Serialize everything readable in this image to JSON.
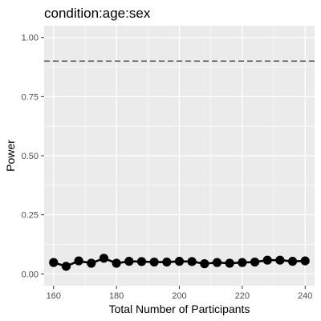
{
  "chart_data": {
    "type": "line",
    "title": "condition:age:sex",
    "xlabel": "Total Number of Participants",
    "ylabel": "Power",
    "xlim": [
      157,
      243
    ],
    "ylim": [
      -0.05,
      1.05
    ],
    "x_ticks": [
      160,
      180,
      200,
      220,
      240
    ],
    "y_ticks": [
      0.0,
      0.25,
      0.5,
      0.75,
      1.0
    ],
    "x_tick_labels": [
      "160",
      "180",
      "200",
      "220",
      "240"
    ],
    "y_tick_labels": [
      "0.00",
      "0.25",
      "0.50",
      "0.75",
      "1.00"
    ],
    "reference_line": 0.9,
    "grid": true,
    "colors": {
      "panel": "#ebebeb",
      "grid_major": "#ffffff",
      "series": "#000000",
      "reference_line": "#666666"
    },
    "series": [
      {
        "x": [
          160,
          164,
          168,
          172,
          176,
          180,
          184,
          188,
          192,
          196,
          200,
          204,
          208,
          212,
          216,
          220,
          224,
          228,
          232,
          236,
          240
        ],
        "y": [
          0.048,
          0.032,
          0.055,
          0.045,
          0.066,
          0.045,
          0.053,
          0.052,
          0.05,
          0.05,
          0.053,
          0.052,
          0.043,
          0.048,
          0.045,
          0.048,
          0.05,
          0.058,
          0.058,
          0.053,
          0.055
        ]
      }
    ]
  }
}
